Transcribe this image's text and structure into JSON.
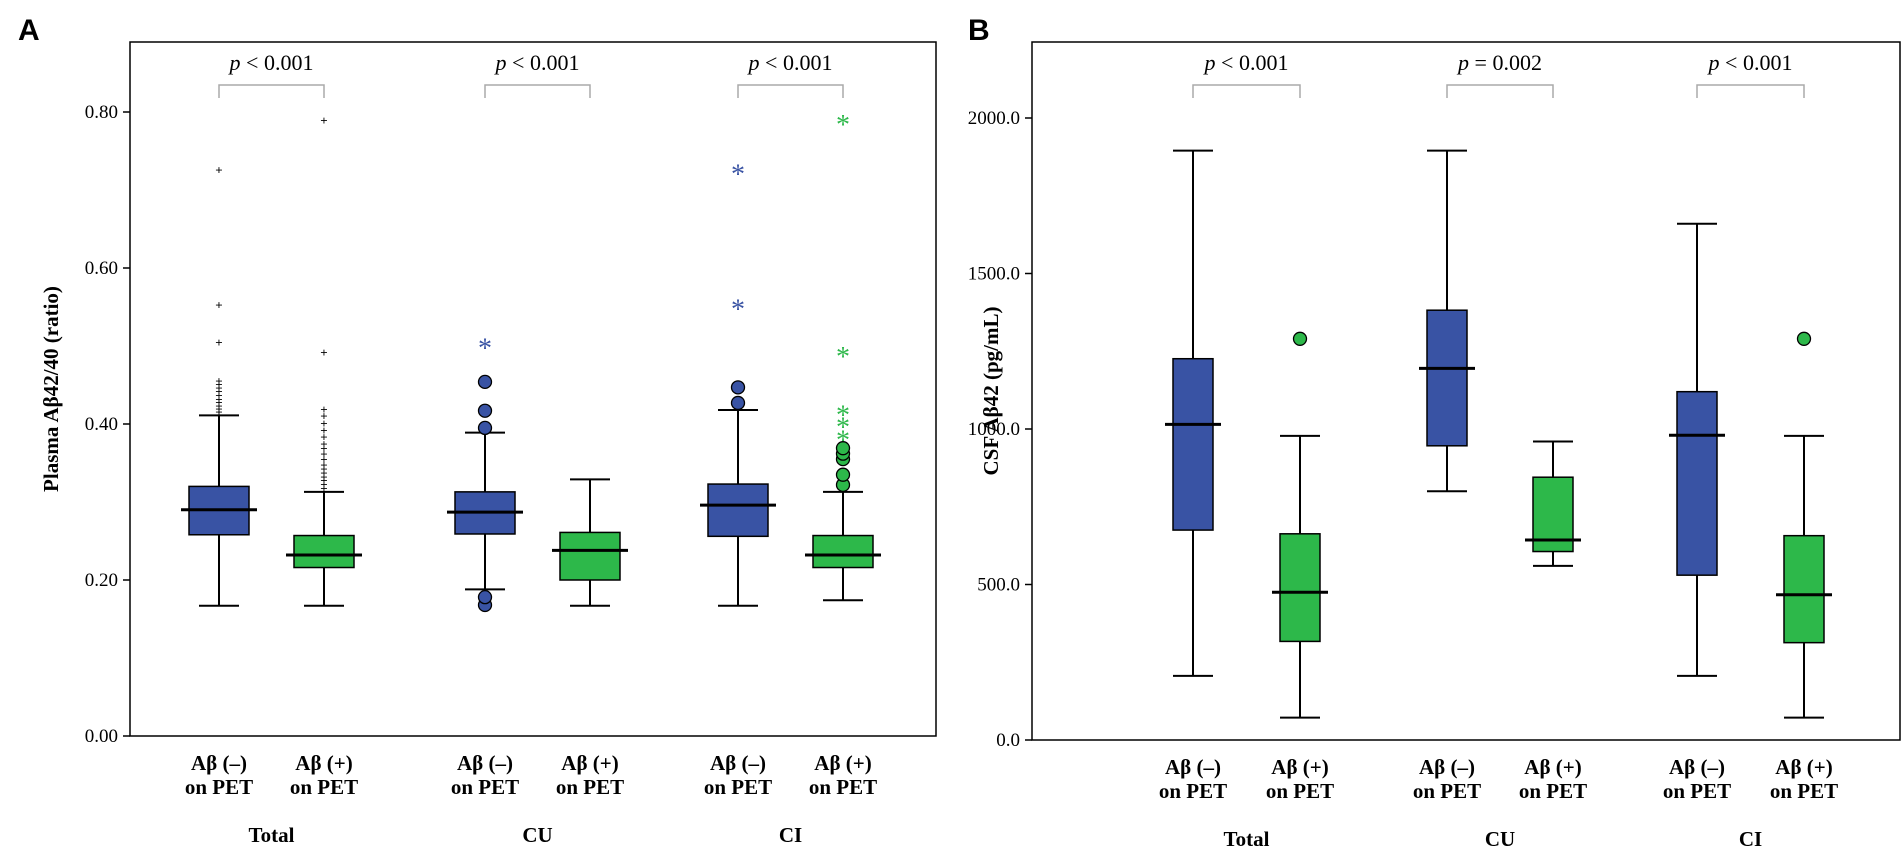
{
  "colors": {
    "neg": "#3953a4",
    "pos": "#2db84a",
    "bracket": "#aaaaaa"
  },
  "chart_data": [
    {
      "panel": "A",
      "type": "box",
      "ylabel": "Plasma Aβ42/40 (ratio)",
      "ylim": [
        0,
        0.88
      ],
      "ticks": [
        0.0,
        0.2,
        0.4,
        0.6,
        0.8
      ],
      "tick_labels": [
        "0.00",
        "0.20",
        "0.40",
        "0.60",
        "0.80"
      ],
      "boxes": [
        {
          "group": "Total",
          "cls": "neg",
          "label1": "Aβ (–)",
          "label2": "on PET",
          "whisker_low": 0.167,
          "q1": 0.258,
          "median": 0.29,
          "q3": 0.32,
          "whisker_high": 0.411,
          "outlier_marker": "cross",
          "outliers": [
            0.412,
            0.416,
            0.42,
            0.424,
            0.428,
            0.432,
            0.437,
            0.442,
            0.447,
            0.451,
            0.456,
            0.505,
            0.553,
            0.726
          ]
        },
        {
          "group": "Total",
          "cls": "pos",
          "label1": "Aβ (+)",
          "label2": "on PET",
          "whisker_low": 0.167,
          "q1": 0.216,
          "median": 0.232,
          "q3": 0.257,
          "whisker_high": 0.313,
          "outlier_marker": "cross",
          "outliers": [
            0.318,
            0.323,
            0.328,
            0.333,
            0.338,
            0.343,
            0.348,
            0.355,
            0.362,
            0.369,
            0.375,
            0.384,
            0.392,
            0.401,
            0.411,
            0.419,
            0.492,
            0.79
          ]
        },
        {
          "group": "CU",
          "cls": "neg",
          "label1": "Aβ (–)",
          "label2": "on PET",
          "whisker_low": 0.188,
          "q1": 0.259,
          "median": 0.287,
          "q3": 0.313,
          "whisker_high": 0.389,
          "outlier_marker": "circle",
          "outliers": [
            0.168,
            0.178,
            0.395,
            0.417,
            0.454
          ],
          "extremes": [
            0.503
          ]
        },
        {
          "group": "CU",
          "cls": "pos",
          "label1": "Aβ (+)",
          "label2": "on PET",
          "whisker_low": 0.167,
          "q1": 0.2,
          "median": 0.238,
          "q3": 0.261,
          "whisker_high": 0.329,
          "outlier_marker": "circle",
          "outliers": []
        },
        {
          "group": "CI",
          "cls": "neg",
          "label1": "Aβ (–)",
          "label2": "on PET",
          "whisker_low": 0.167,
          "q1": 0.256,
          "median": 0.296,
          "q3": 0.323,
          "whisker_high": 0.418,
          "outlier_marker": "circle",
          "outliers": [
            0.427,
            0.447
          ],
          "extremes": [
            0.553,
            0.726
          ]
        },
        {
          "group": "CI",
          "cls": "pos",
          "label1": "Aβ (+)",
          "label2": "on PET",
          "whisker_low": 0.174,
          "q1": 0.216,
          "median": 0.232,
          "q3": 0.257,
          "whisker_high": 0.313,
          "outlier_marker": "circle",
          "outliers": [
            0.322,
            0.335,
            0.355,
            0.362,
            0.369
          ],
          "extremes": [
            0.385,
            0.402,
            0.417,
            0.492,
            0.79
          ]
        }
      ],
      "groups": [
        {
          "name": "Total",
          "p": "p < 0.001"
        },
        {
          "name": "CU",
          "p": "p < 0.001"
        },
        {
          "name": "CI",
          "p": "p < 0.001"
        }
      ]
    },
    {
      "panel": "B",
      "type": "box",
      "ylabel": "CSF Aβ42 (pg/mL)",
      "ylim": [
        0,
        2240
      ],
      "ticks": [
        0,
        500,
        1000,
        1500,
        2000
      ],
      "tick_labels": [
        "0.0",
        "500.0",
        "1000.0",
        "1500.0",
        "2000.0"
      ],
      "boxes": [
        {
          "group": "Total",
          "cls": "neg",
          "label1": "Aβ (–)",
          "label2": "on PET",
          "whisker_low": 206,
          "q1": 675,
          "median": 1015,
          "q3": 1226,
          "whisker_high": 1895,
          "outlier_marker": "circle",
          "outliers": []
        },
        {
          "group": "Total",
          "cls": "pos",
          "label1": "Aβ (+)",
          "label2": "on PET",
          "whisker_low": 72,
          "q1": 317,
          "median": 475,
          "q3": 663,
          "whisker_high": 978,
          "outlier_marker": "circle",
          "outliers": [
            1290
          ]
        },
        {
          "group": "CU",
          "cls": "neg",
          "label1": "Aβ (–)",
          "label2": "on PET",
          "whisker_low": 800,
          "q1": 946,
          "median": 1195,
          "q3": 1382,
          "whisker_high": 1895,
          "outlier_marker": "circle",
          "outliers": []
        },
        {
          "group": "CU",
          "cls": "pos",
          "label1": "Aβ (+)",
          "label2": "on PET",
          "whisker_low": 560,
          "q1": 606,
          "median": 643,
          "q3": 845,
          "whisker_high": 960,
          "outlier_marker": "circle",
          "outliers": []
        },
        {
          "group": "CI",
          "cls": "neg",
          "label1": "Aβ (–)",
          "label2": "on PET",
          "whisker_low": 206,
          "q1": 530,
          "median": 980,
          "q3": 1120,
          "whisker_high": 1660,
          "outlier_marker": "circle",
          "outliers": []
        },
        {
          "group": "CI",
          "cls": "pos",
          "label1": "Aβ (+)",
          "label2": "on PET",
          "whisker_low": 72,
          "q1": 313,
          "median": 467,
          "q3": 657,
          "whisker_high": 978,
          "outlier_marker": "circle",
          "outliers": [
            1290
          ]
        }
      ],
      "groups": [
        {
          "name": "Total",
          "p": "p < 0.001"
        },
        {
          "name": "CU",
          "p": "p = 0.002"
        },
        {
          "name": "CI",
          "p": "p < 0.001"
        }
      ]
    }
  ]
}
